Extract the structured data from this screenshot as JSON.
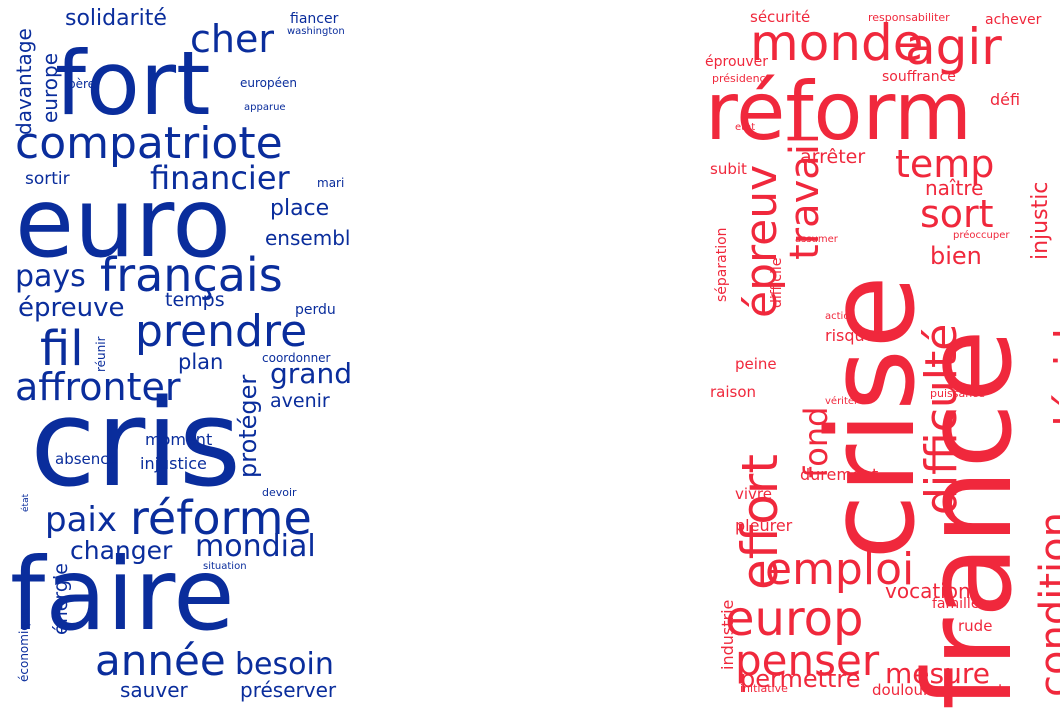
{
  "colors": {
    "left": "#0a2d9c",
    "right": "#f0283c"
  },
  "clouds": [
    {
      "side": "left",
      "words": [
        "fort",
        "euro",
        "cris",
        "faire",
        "compatriote",
        "français",
        "prendre",
        "fil",
        "affronter",
        "réforme",
        "année",
        "besoin",
        "cher",
        "financier",
        "pays",
        "épreuve",
        "mondial",
        "paix",
        "grand",
        "changer",
        "solidarité",
        "place",
        "ensembl",
        "temps",
        "plan",
        "avenir",
        "protéger",
        "sortir",
        "europe",
        "davantage",
        "moment",
        "injustice",
        "absence",
        "énergie",
        "économique",
        "sauver",
        "préserver",
        "perdu",
        "coordonner",
        "réunir",
        "fiancer",
        "washington",
        "père",
        "européen",
        "apparue",
        "mari",
        "devoir",
        "situation",
        "état"
      ]
    },
    {
      "side": "right",
      "words": [
        "réform",
        "crise",
        "france",
        "monde",
        "agir",
        "temp",
        "sort",
        "épreuv",
        "travail",
        "effort",
        "fond",
        "difficulté",
        "décider",
        "condition",
        "emploi",
        "europ",
        "penser",
        "mesure",
        "permettre",
        "bien",
        "naître",
        "arrêter",
        "injustic",
        "sécurité",
        "responsabiliter",
        "achever",
        "éprouver",
        "présidenc",
        "souffrance",
        "défi",
        "etat",
        "subit",
        "séparation",
        "difficile",
        "assumer",
        "préoccuper",
        "action",
        "risquer",
        "peine",
        "raison",
        "vériter",
        "puissance",
        "durement",
        "vivre",
        "pleurer",
        "industrie",
        "vocation",
        "famille",
        "rude",
        "initiative",
        "douloureusement"
      ]
    }
  ]
}
